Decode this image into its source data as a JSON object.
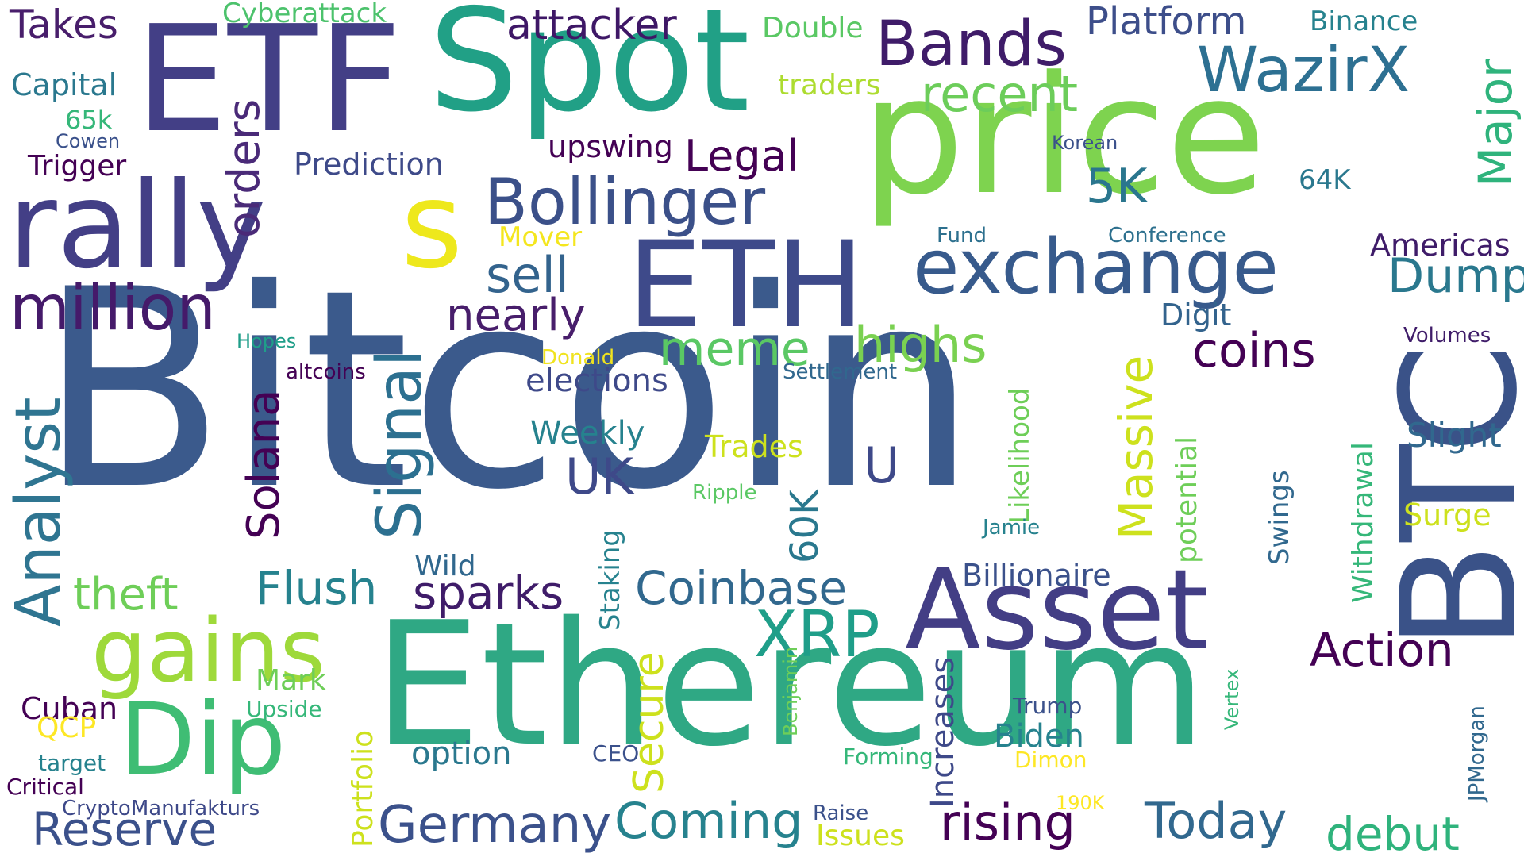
{
  "colors": {
    "background": "#ffffff",
    "palette": [
      "#440154",
      "#482878",
      "#3e4989",
      "#31688e",
      "#26828e",
      "#1f9e89",
      "#35b779",
      "#6ece58",
      "#b5de2b",
      "#fde725"
    ]
  },
  "words": {
    "bitcoin": "Bitcoin",
    "ethereum": "Ethereum",
    "price": "price",
    "btc": "BTC",
    "etf": "ETF",
    "spot": "Spot",
    "rally": "rally",
    "s": "s",
    "eth": "ETH",
    "asset": "Asset",
    "exchange": "exchange",
    "bollinger": "Bollinger",
    "bands": "Bands",
    "wazirx": "WazirX",
    "gains": "gains",
    "dip": "Dip",
    "million": "million",
    "analyst": "Analyst",
    "signal": "Signal",
    "orders": "orders",
    "attacker": "attacker",
    "platform": "Platform",
    "major": "Major",
    "recent": "recent",
    "takes": "Takes",
    "cyberattack": "Cyberattack",
    "double": "Double",
    "binance": "Binance",
    "capital": "Capital",
    "traders": "traders",
    "k65": "65k",
    "cowen": "Cowen",
    "trigger": "Trigger",
    "prediction": "Prediction",
    "upswing": "upswing",
    "legal": "Legal",
    "korean": "Korean",
    "k5": "5K",
    "k64": "64K",
    "mover": "Mover",
    "fund": "Fund",
    "conference": "Conference",
    "americas": "Americas",
    "sell": "sell",
    "dump": "Dump",
    "nearly": "nearly",
    "digit": "Digit",
    "meme": "meme",
    "highs": "highs",
    "coins": "coins",
    "volumes": "Volumes",
    "hopes": "Hopes",
    "donald": "Donald",
    "altcoins": "altcoins",
    "settlement": "Settlement",
    "elections": "elections",
    "solana": "Solana",
    "likelihood": "Likelihood",
    "massive": "Massive",
    "weekly": "Weekly",
    "slight": "Slight",
    "trades": "Trades",
    "uk": "UK",
    "u": "U",
    "potential": "potential",
    "withdrawal": "Withdrawal",
    "ripple": "Ripple",
    "swings": "Swings",
    "surge": "Surge",
    "k60": "60K",
    "jamie": "Jamie",
    "staking": "Staking",
    "wild": "Wild",
    "billionaire": "Billionaire",
    "theft": "theft",
    "flush": "Flush",
    "sparks": "sparks",
    "coinbase": "Coinbase",
    "xrp": "XRP",
    "action": "Action",
    "mark": "Mark",
    "cuban": "Cuban",
    "upside": "Upside",
    "secure": "Secure",
    "increases": "Increases",
    "benjamin": "Benjamin",
    "trump": "Trump",
    "qcp": "QCP",
    "portfolio": "Portfolio",
    "vertex": "Vertex",
    "jpmorgan": "JPMorgan",
    "biden": "Biden",
    "target": "target",
    "option": "option",
    "ceo": "CEO",
    "forming": "Forming",
    "dimon": "Dimon",
    "critical": "Critical",
    "cryptomanufakturs": "CryptoManufakturs",
    "k190": "190K",
    "raise": "Raise",
    "reserve": "Reserve",
    "germany": "Germany",
    "coming": "Coming",
    "issues": "Issues",
    "rising": "rising",
    "today": "Today",
    "debut": "debut"
  }
}
